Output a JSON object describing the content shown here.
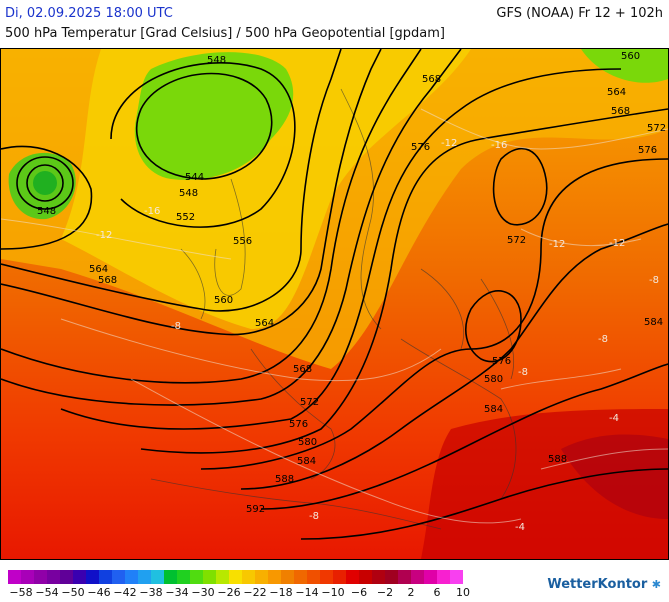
{
  "header": {
    "datetime": "Di, 02.09.2025 18:00 UTC",
    "model": "GFS (NOAA) Fr 12 + 102h",
    "parameter": "500 hPa Temperatur [Grad Celsius] / 500 hPa Geopotential [gpdam]"
  },
  "map": {
    "geopotential_labels": [
      "548",
      "544",
      "548",
      "548",
      "544",
      "548",
      "552",
      "556",
      "560",
      "564",
      "568",
      "564",
      "560",
      "568",
      "572",
      "576",
      "580",
      "584",
      "588",
      "592",
      "568",
      "576",
      "572",
      "576",
      "580",
      "584",
      "588",
      "560",
      "564",
      "568",
      "572",
      "576",
      "584"
    ],
    "temperature_labels": [
      "-12",
      "-8",
      "-8",
      "-12",
      "-12",
      "-16",
      "-16",
      "-12",
      "-8",
      "-8",
      "-4",
      "-4",
      "-8"
    ]
  },
  "legend": {
    "colors": [
      "#c000c8",
      "#a800b8",
      "#9000a8",
      "#7800a0",
      "#600098",
      "#3a00b0",
      "#1010c8",
      "#1040e0",
      "#2060f0",
      "#2080f8",
      "#20a0f0",
      "#20c0e0",
      "#00c030",
      "#20d020",
      "#50dc10",
      "#80e000",
      "#b8e800",
      "#f8e000",
      "#f8c800",
      "#f8b000",
      "#f89800",
      "#f08000",
      "#f06800",
      "#f05000",
      "#f03800",
      "#e82000",
      "#e00000",
      "#c80000",
      "#b00010",
      "#a00020",
      "#b00050",
      "#c80080",
      "#e000a8",
      "#f820d0",
      "#f840f0"
    ],
    "labels": [
      "−58",
      "−54",
      "−50",
      "−46",
      "−42",
      "−38",
      "−34",
      "−30",
      "−26",
      "−22",
      "−18",
      "−14",
      "−10",
      "−6",
      "−2",
      "2",
      "6",
      "10"
    ]
  },
  "brand": {
    "name": "WetterKontor",
    "mark": "✱"
  }
}
